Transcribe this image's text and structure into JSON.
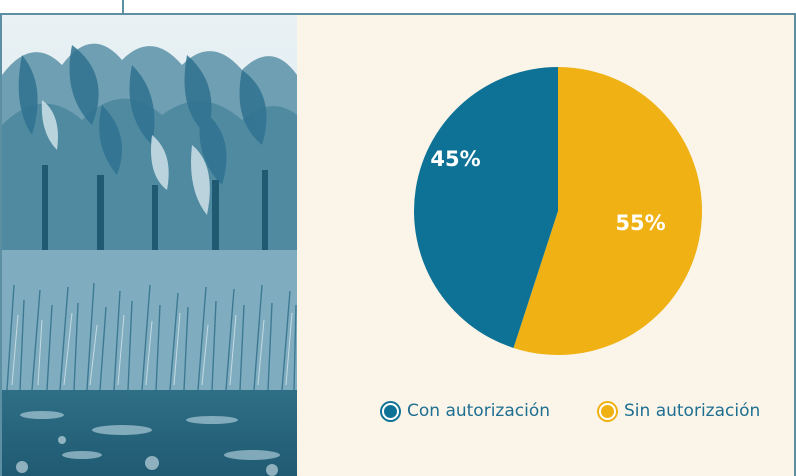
{
  "colors": {
    "con_autorizacion": "#0e7296",
    "sin_autorizacion": "#efb113",
    "panel_background": "#faf5e8",
    "legend_text": "#1f6f92"
  },
  "photo": {
    "subject": "banana-plantation-photo"
  },
  "chart_data": {
    "type": "pie",
    "title": "",
    "slices": [
      {
        "label": "Con autorización",
        "value": 45,
        "display": "45%",
        "color": "#0e7296"
      },
      {
        "label": "Sin autorización",
        "value": 55,
        "display": "55%",
        "color": "#efb113"
      }
    ],
    "legend": {
      "placement": "bottom",
      "items": [
        "Con autorización",
        "Sin autorización"
      ]
    }
  }
}
